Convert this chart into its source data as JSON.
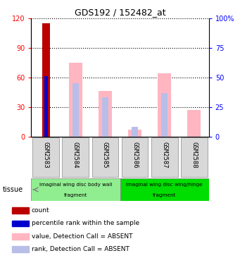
{
  "title": "GDS192 / 152482_at",
  "samples": [
    "GSM2583",
    "GSM2584",
    "GSM2585",
    "GSM2586",
    "GSM2587",
    "GSM2588"
  ],
  "count_values": [
    115,
    0,
    0,
    0,
    0,
    0
  ],
  "percentile_rank_values": [
    61,
    0,
    0,
    0,
    0,
    0
  ],
  "value_absent": [
    0,
    75,
    46,
    7,
    64,
    27
  ],
  "rank_absent": [
    0,
    54,
    40,
    10,
    44,
    0
  ],
  "left_ylim": [
    0,
    120
  ],
  "right_ylim": [
    0,
    100
  ],
  "left_yticks": [
    0,
    30,
    60,
    90,
    120
  ],
  "right_yticks": [
    0,
    25,
    50,
    75,
    100
  ],
  "right_yticklabels": [
    "0",
    "25",
    "50",
    "75",
    "100%"
  ],
  "tissue_groups": [
    {
      "label1": "imaginal wing disc body wall",
      "label2": "fragment",
      "samples": [
        "GSM2583",
        "GSM2584",
        "GSM2585"
      ],
      "color": "#90EE90"
    },
    {
      "label1": "imaginal wing disc wing/hinge",
      "label2": "fragment",
      "samples": [
        "GSM2586",
        "GSM2587",
        "GSM2588"
      ],
      "color": "#00DD00"
    }
  ],
  "tissue_label": "tissue",
  "color_count": "#BB0000",
  "color_percentile": "#0000CC",
  "color_value_absent": "#FFB6C1",
  "color_rank_absent": "#B8BEE8",
  "legend_items": [
    {
      "color": "#BB0000",
      "label": "count"
    },
    {
      "color": "#0000CC",
      "label": "percentile rank within the sample"
    },
    {
      "color": "#FFB6C1",
      "label": "value, Detection Call = ABSENT"
    },
    {
      "color": "#B8BEE8",
      "label": "rank, Detection Call = ABSENT"
    }
  ]
}
